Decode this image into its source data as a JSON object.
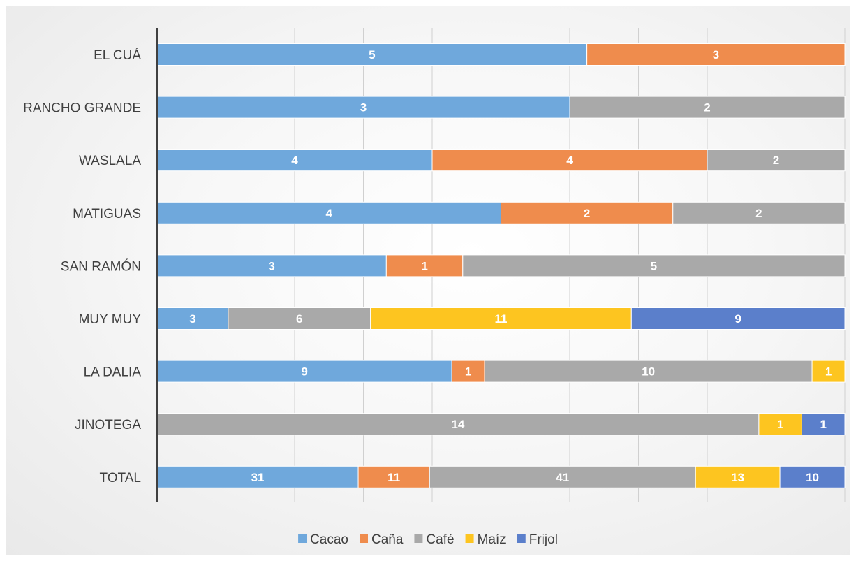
{
  "chart_data": {
    "type": "bar",
    "orientation": "horizontal",
    "stacking": "percent",
    "categories": [
      "EL CUÁ",
      "RANCHO GRANDE",
      "WASLALA",
      "MATIGUAS",
      "SAN RAMÓN",
      "MUY MUY",
      "LA DALIA",
      "JINOTEGA",
      "TOTAL"
    ],
    "series": [
      {
        "name": "Cacao",
        "color": "#6fa8dc",
        "values": [
          5,
          3,
          4,
          4,
          3,
          3,
          9,
          0,
          31
        ]
      },
      {
        "name": "Caña",
        "color": "#ef8c4d",
        "values": [
          3,
          0,
          4,
          2,
          1,
          0,
          1,
          0,
          11
        ]
      },
      {
        "name": "Café",
        "color": "#a9a9a9",
        "values": [
          0,
          2,
          2,
          2,
          5,
          6,
          10,
          14,
          41
        ]
      },
      {
        "name": "Maíz",
        "color": "#fdc520",
        "values": [
          0,
          0,
          0,
          0,
          0,
          11,
          1,
          1,
          13
        ]
      },
      {
        "name": "Frijol",
        "color": "#5b7fcb",
        "values": [
          0,
          0,
          0,
          0,
          0,
          9,
          0,
          1,
          10
        ]
      }
    ],
    "xlim": [
      0,
      1
    ],
    "gridlines": 10,
    "grid": true,
    "legend": "bottom",
    "title": "",
    "xlabel": "",
    "ylabel": ""
  }
}
